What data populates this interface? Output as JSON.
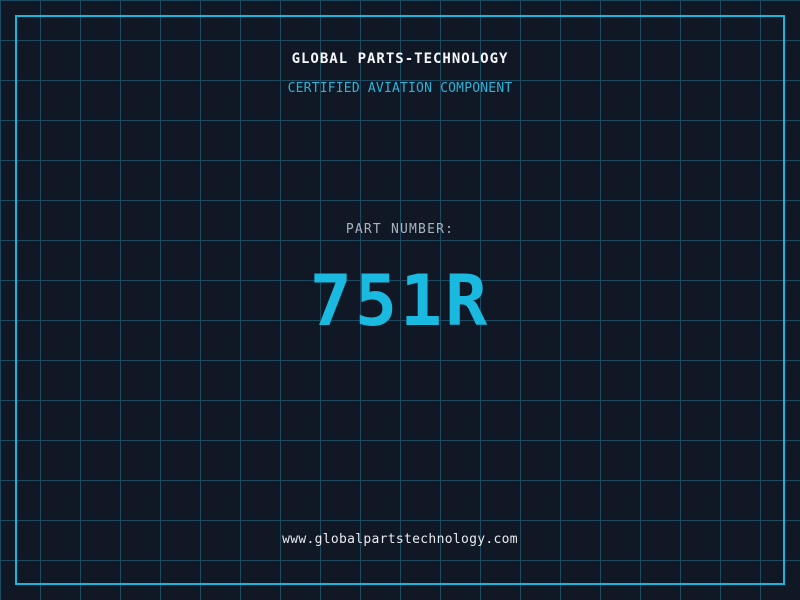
{
  "colors": {
    "background": "#101826",
    "grid_line": "#1c4a60",
    "frame_border": "#14b8dc",
    "title_text": "#f5f7fa",
    "subtitle_text": "#2bb3d9",
    "label_text": "#a9b3bf",
    "part_number_text": "#1ab9e0",
    "footer_text": "#e8ecf0"
  },
  "header": {
    "title": "GLOBAL PARTS-TECHNOLOGY",
    "subtitle": "CERTIFIED AVIATION COMPONENT"
  },
  "part": {
    "label": "PART NUMBER:",
    "number": "751R"
  },
  "footer": {
    "url": "www.globalpartstechnology.com"
  }
}
